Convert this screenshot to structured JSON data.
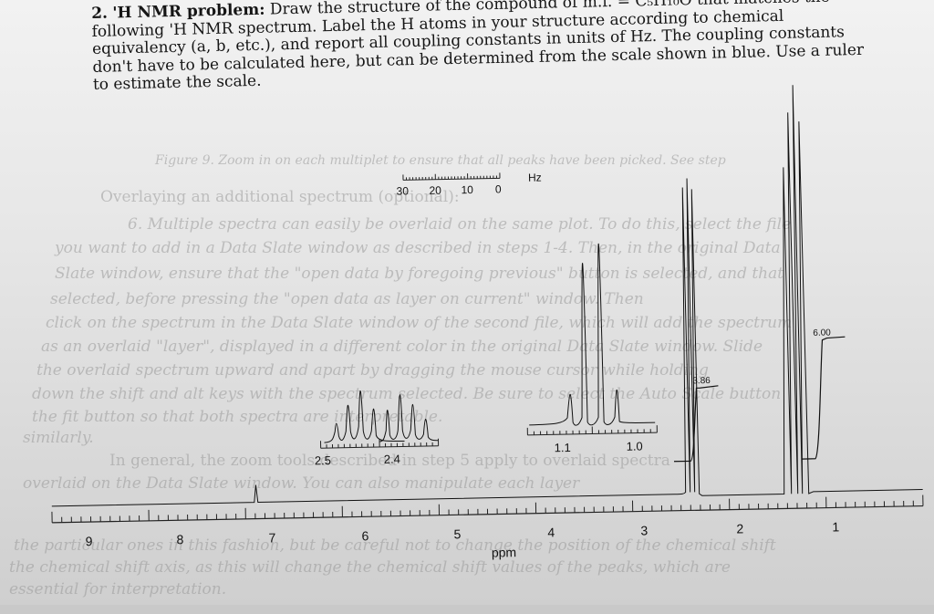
{
  "problem": {
    "number": "2.",
    "title": "'H NMR problem:",
    "body": "Draw the structure of the compound of m.f. = C₅H₁₀O that matches the following 'H NMR spectrum. Label the H atoms in your structure according to chemical equivalency (a, b, etc.), and report all coupling constants in units of Hz. The coupling constants don't have to be calculated here, but can be determined from the scale shown in blue. Use a ruler to estimate the scale."
  },
  "scale_bar": {
    "ticks": [
      "30",
      "20",
      "10",
      "0"
    ],
    "unit": "Hz"
  },
  "inset_left": {
    "axis_labels": [
      "2.5",
      "2.4"
    ]
  },
  "inset_right": {
    "axis_labels": [
      "1.1",
      "1.0"
    ]
  },
  "integrations": {
    "peak_386": "3.86",
    "peak_600": "6.00"
  },
  "main_axis": {
    "ticks": [
      "9",
      "8",
      "7",
      "6",
      "5",
      "4",
      "3",
      "2",
      "1"
    ],
    "unit": "ppm"
  },
  "bleed_text": [
    "Figure 9. Zoom in on each multiplet to ensure that all peaks have been picked. See step",
    "Overlaying an additional spectrum (optional):",
    "6. Multiple spectra can easily be overlaid on the same plot. To do this, select the file",
    "you want to add in a Data Slate window as described in steps 1-4. Then, in the original Data",
    "Slate window, ensure that the \"open data by foregoing previous\" button is selected, and that",
    "selected, before pressing the \"open data as layer on current\" window. Then",
    "click on the spectrum in the Data Slate window of the second file, which will add the spectrum",
    "as an overlaid \"layer\", displayed in a different color in the original Data Slate window. Slide",
    "the overlaid spectrum upward and apart by dragging the mouse cursor while holding",
    "down the shift and alt keys with the spectrum selected. Be sure to select the Auto Scale button",
    "the fit button so that both spectra are interpretable.",
    "similarly.",
    "In general, the zoom tools described in step 5 apply to overlaid spectra",
    "overlaid on the Data Slate window. You can also manipulate each layer",
    "the particular ones in this fashion, but be careful not to change the position of the chemical shift",
    "the chemical shift axis, as this will change the chemical shift values of the peaks, which are",
    "essential for interpretation."
  ]
}
